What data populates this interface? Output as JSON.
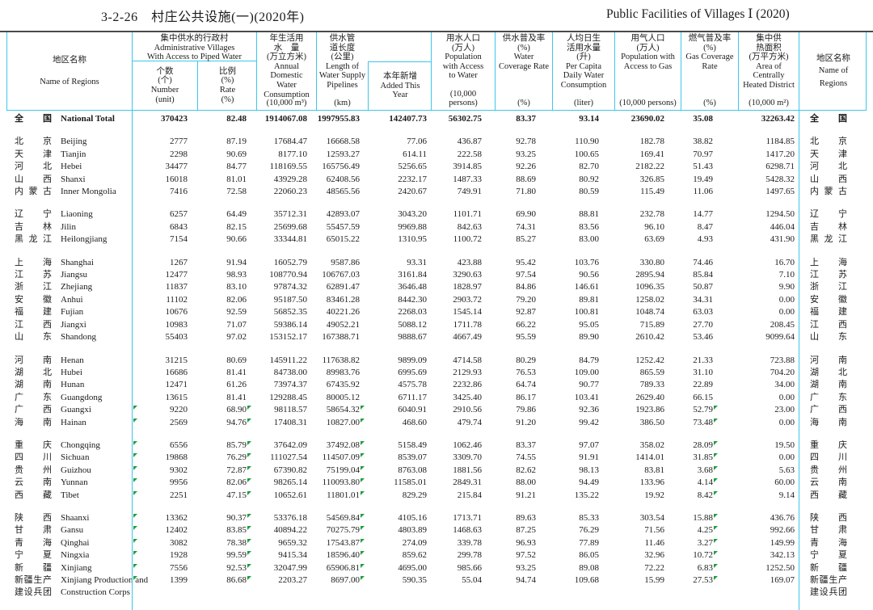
{
  "title": {
    "zh": "3-2-26　村庄公共设施(一)(2020年)",
    "en": "Public Facilities of Villages Ⅰ (2020)"
  },
  "colors": {
    "border": "#3ec6e8",
    "flag": "#1e9e3e",
    "top_rule": "#4a4a4a"
  },
  "header": {
    "region_left": {
      "zh": "地区名称",
      "en": "Name of Regions"
    },
    "piped_group": {
      "lines": [
        "集中供水的行政村",
        "Administrative Villages",
        "With Access to Piped Water"
      ]
    },
    "number": {
      "lines": [
        "个数",
        "(个)",
        "Number",
        "(unit)"
      ]
    },
    "rate": {
      "lines": [
        "比例",
        "(%)",
        "Rate",
        "(%)"
      ]
    },
    "consumption": {
      "top": [
        "年生活用",
        "水　量",
        "(万立方米)",
        "Annual",
        "Domestic",
        "Water",
        "Consumption"
      ],
      "unit": [
        "(10,000 m³)"
      ]
    },
    "pipelines": {
      "top": [
        "供水管",
        "道长度",
        "(公里)",
        "Length of",
        "Water Supply",
        "Pipelines"
      ],
      "unit": [
        "(km)"
      ]
    },
    "added": {
      "lines": [
        "本年新增",
        "Added This",
        "Year"
      ]
    },
    "pop_water": {
      "top": [
        "用水人口",
        "(万人)",
        "Population",
        "with Access",
        "to Water"
      ],
      "unit": [
        "(10,000",
        "persons)"
      ]
    },
    "water_coverage": {
      "top": [
        "供水普及率",
        "(%)",
        "Water",
        "Coverage Rate"
      ],
      "unit": [
        "(%)"
      ]
    },
    "per_capita": {
      "top": [
        "人均日生",
        "活用水量",
        "(升)",
        "Per Capita",
        "Daily Water",
        "Consumption"
      ],
      "unit": [
        "(liter)"
      ]
    },
    "pop_gas": {
      "top": [
        "用气人口",
        "(万人)",
        "Population with",
        "Access to Gas"
      ],
      "unit": [
        "(10,000 persons)"
      ]
    },
    "gas_coverage": {
      "top": [
        "燃气普及率",
        "(%)",
        "Gas Coverage",
        "Rate"
      ],
      "unit": [
        "(%)"
      ]
    },
    "heated": {
      "top": [
        "集中供",
        "热面积",
        "(万平方米)",
        "Area of",
        "Centrally",
        "Heated District"
      ],
      "unit": [
        "(10,000 m²)"
      ]
    },
    "region_right": {
      "zh": "地区名称",
      "en1": "Name of",
      "en2": "Regions"
    }
  },
  "table": {
    "national": {
      "zh": "全国",
      "en": "National Total",
      "bold": true,
      "flagged": false,
      "v": [
        "370423",
        "82.48",
        "1914067.08",
        "1997955.83",
        "142407.73",
        "56302.75",
        "83.37",
        "93.14",
        "23690.02",
        "35.08",
        "32263.42"
      ]
    },
    "groups": [
      [
        {
          "zh": "北京",
          "en": "Beijing",
          "flagged": false,
          "v": [
            "2777",
            "87.19",
            "17684.47",
            "16668.58",
            "77.06",
            "436.87",
            "92.78",
            "110.90",
            "182.78",
            "38.82",
            "1184.85"
          ]
        },
        {
          "zh": "天津",
          "en": "Tianjin",
          "flagged": false,
          "v": [
            "2298",
            "90.69",
            "8177.10",
            "12593.27",
            "614.11",
            "222.58",
            "93.25",
            "100.65",
            "169.41",
            "70.97",
            "1417.20"
          ]
        },
        {
          "zh": "河北",
          "en": "Hebei",
          "flagged": false,
          "v": [
            "34477",
            "84.77",
            "118169.55",
            "165756.49",
            "5256.65",
            "3914.85",
            "92.26",
            "82.70",
            "2182.22",
            "51.43",
            "6298.71"
          ]
        },
        {
          "zh": "山西",
          "en": "Shanxi",
          "flagged": false,
          "v": [
            "16018",
            "81.01",
            "43929.28",
            "62408.56",
            "2232.17",
            "1487.33",
            "88.69",
            "80.92",
            "326.85",
            "19.49",
            "5428.32"
          ]
        },
        {
          "zh": "内蒙古",
          "en": "Inner Mongolia",
          "flagged": false,
          "v": [
            "7416",
            "72.58",
            "22060.23",
            "48565.56",
            "2420.67",
            "749.91",
            "71.80",
            "80.59",
            "115.49",
            "11.06",
            "1497.65"
          ]
        }
      ],
      [
        {
          "zh": "辽宁",
          "en": "Liaoning",
          "flagged": false,
          "v": [
            "6257",
            "64.49",
            "35712.31",
            "42893.07",
            "3043.20",
            "1101.71",
            "69.90",
            "88.81",
            "232.78",
            "14.77",
            "1294.50"
          ]
        },
        {
          "zh": "吉林",
          "en": "Jilin",
          "flagged": false,
          "v": [
            "6843",
            "82.15",
            "25699.68",
            "55457.59",
            "9969.88",
            "842.63",
            "74.31",
            "83.56",
            "96.10",
            "8.47",
            "446.04"
          ]
        },
        {
          "zh": "黑龙江",
          "en": "Heilongjiang",
          "flagged": false,
          "v": [
            "7154",
            "90.66",
            "33344.81",
            "65015.22",
            "1310.95",
            "1100.72",
            "85.27",
            "83.00",
            "63.69",
            "4.93",
            "431.90"
          ]
        }
      ],
      [
        {
          "zh": "上海",
          "en": "Shanghai",
          "flagged": false,
          "v": [
            "1267",
            "91.94",
            "16052.79",
            "9587.86",
            "93.31",
            "423.88",
            "95.42",
            "103.76",
            "330.80",
            "74.46",
            "16.70"
          ]
        },
        {
          "zh": "江苏",
          "en": "Jiangsu",
          "flagged": false,
          "v": [
            "12477",
            "98.93",
            "108770.94",
            "106767.03",
            "3161.84",
            "3290.63",
            "97.54",
            "90.56",
            "2895.94",
            "85.84",
            "7.10"
          ]
        },
        {
          "zh": "浙江",
          "en": "Zhejiang",
          "flagged": false,
          "v": [
            "11837",
            "83.10",
            "97874.32",
            "62891.47",
            "3646.48",
            "1828.97",
            "84.86",
            "146.61",
            "1096.35",
            "50.87",
            "9.90"
          ]
        },
        {
          "zh": "安徽",
          "en": "Anhui",
          "flagged": false,
          "v": [
            "11102",
            "82.06",
            "95187.50",
            "83461.28",
            "8442.30",
            "2903.72",
            "79.20",
            "89.81",
            "1258.02",
            "34.31",
            "0.00"
          ]
        },
        {
          "zh": "福建",
          "en": "Fujian",
          "flagged": false,
          "v": [
            "10676",
            "92.59",
            "56852.35",
            "40221.26",
            "2268.03",
            "1545.14",
            "92.87",
            "100.81",
            "1048.74",
            "63.03",
            "0.00"
          ]
        },
        {
          "zh": "江西",
          "en": "Jiangxi",
          "flagged": false,
          "v": [
            "10983",
            "71.07",
            "59386.14",
            "49052.21",
            "5088.12",
            "1711.78",
            "66.22",
            "95.05",
            "715.89",
            "27.70",
            "208.45"
          ]
        },
        {
          "zh": "山东",
          "en": "Shandong",
          "flagged": false,
          "v": [
            "55403",
            "97.02",
            "153152.17",
            "167388.71",
            "9888.67",
            "4667.49",
            "95.59",
            "89.90",
            "2610.42",
            "53.46",
            "9099.64"
          ]
        }
      ],
      [
        {
          "zh": "河南",
          "en": "Henan",
          "flagged": false,
          "v": [
            "31215",
            "80.69",
            "145911.22",
            "117638.82",
            "9899.09",
            "4714.58",
            "80.29",
            "84.79",
            "1252.42",
            "21.33",
            "723.88"
          ]
        },
        {
          "zh": "湖北",
          "en": "Hubei",
          "flagged": false,
          "v": [
            "16686",
            "81.41",
            "84738.00",
            "89983.76",
            "6995.69",
            "2129.93",
            "76.53",
            "109.00",
            "865.59",
            "31.10",
            "704.20"
          ]
        },
        {
          "zh": "湖南",
          "en": "Hunan",
          "flagged": false,
          "v": [
            "12471",
            "61.26",
            "73974.37",
            "67435.92",
            "4575.78",
            "2232.86",
            "64.74",
            "90.77",
            "789.33",
            "22.89",
            "34.00"
          ]
        },
        {
          "zh": "广东",
          "en": "Guangdong",
          "flagged": false,
          "v": [
            "13615",
            "81.41",
            "129288.45",
            "80005.12",
            "6711.17",
            "3425.40",
            "86.17",
            "103.41",
            "2629.40",
            "66.15",
            "0.00"
          ]
        },
        {
          "zh": "广西",
          "en": "Guangxi",
          "flagged": true,
          "v": [
            "9220",
            "68.90",
            "98118.57",
            "58654.32",
            "6040.91",
            "2910.56",
            "79.86",
            "92.36",
            "1923.86",
            "52.79",
            "23.00"
          ]
        },
        {
          "zh": "海南",
          "en": "Hainan",
          "flagged": true,
          "v": [
            "2569",
            "94.76",
            "17408.31",
            "10827.00",
            "468.60",
            "479.74",
            "91.20",
            "99.42",
            "386.50",
            "73.48",
            "0.00"
          ]
        }
      ],
      [
        {
          "zh": "重庆",
          "en": "Chongqing",
          "flagged": true,
          "v": [
            "6556",
            "85.79",
            "37642.09",
            "37492.08",
            "5158.49",
            "1062.46",
            "83.37",
            "97.07",
            "358.02",
            "28.09",
            "19.50"
          ]
        },
        {
          "zh": "四川",
          "en": "Sichuan",
          "flagged": true,
          "v": [
            "19868",
            "76.29",
            "111027.54",
            "114507.09",
            "8539.07",
            "3309.70",
            "74.55",
            "91.91",
            "1414.01",
            "31.85",
            "0.00"
          ]
        },
        {
          "zh": "贵州",
          "en": "Guizhou",
          "flagged": true,
          "v": [
            "9302",
            "72.87",
            "67390.82",
            "75199.04",
            "8763.08",
            "1881.56",
            "82.62",
            "98.13",
            "83.81",
            "3.68",
            "5.63"
          ]
        },
        {
          "zh": "云南",
          "en": "Yunnan",
          "flagged": true,
          "v": [
            "9956",
            "82.06",
            "98265.14",
            "110093.80",
            "11585.01",
            "2849.31",
            "88.00",
            "94.49",
            "133.96",
            "4.14",
            "60.00"
          ]
        },
        {
          "zh": "西藏",
          "en": "Tibet",
          "flagged": true,
          "v": [
            "2251",
            "47.15",
            "10652.61",
            "11801.01",
            "829.29",
            "215.84",
            "91.21",
            "135.22",
            "19.92",
            "8.42",
            "9.14"
          ]
        }
      ],
      [
        {
          "zh": "陕西",
          "en": "Shaanxi",
          "flagged": true,
          "v": [
            "13362",
            "90.37",
            "53376.18",
            "54569.84",
            "4105.16",
            "1713.71",
            "89.63",
            "85.33",
            "303.54",
            "15.88",
            "436.76"
          ]
        },
        {
          "zh": "甘肃",
          "en": "Gansu",
          "flagged": true,
          "v": [
            "12402",
            "83.85",
            "40894.22",
            "70275.79",
            "4803.89",
            "1468.63",
            "87.25",
            "76.29",
            "71.56",
            "4.25",
            "992.66"
          ]
        },
        {
          "zh": "青海",
          "en": "Qinghai",
          "flagged": true,
          "v": [
            "3082",
            "78.38",
            "9659.32",
            "17543.87",
            "274.09",
            "339.78",
            "96.93",
            "77.89",
            "11.46",
            "3.27",
            "149.99"
          ]
        },
        {
          "zh": "宁夏",
          "en": "Ningxia",
          "flagged": true,
          "v": [
            "1928",
            "99.59",
            "9415.34",
            "18596.40",
            "859.62",
            "299.78",
            "97.52",
            "86.05",
            "32.96",
            "10.72",
            "342.13"
          ]
        },
        {
          "zh": "新疆",
          "en": "Xinjiang",
          "flagged": true,
          "v": [
            "7556",
            "92.53",
            "32047.99",
            "65906.81",
            "4695.00",
            "985.66",
            "93.25",
            "89.08",
            "72.22",
            "6.83",
            "1252.50"
          ]
        },
        {
          "zh": "新疆生产",
          "zh2": "建设兵团",
          "en": "Xinjiang Production and",
          "en2": "Construction Corps",
          "flagged": true,
          "v": [
            "1399",
            "86.68",
            "2203.27",
            "8697.00",
            "590.35",
            "55.04",
            "94.74",
            "109.68",
            "15.99",
            "27.53",
            "169.07"
          ]
        }
      ]
    ]
  }
}
